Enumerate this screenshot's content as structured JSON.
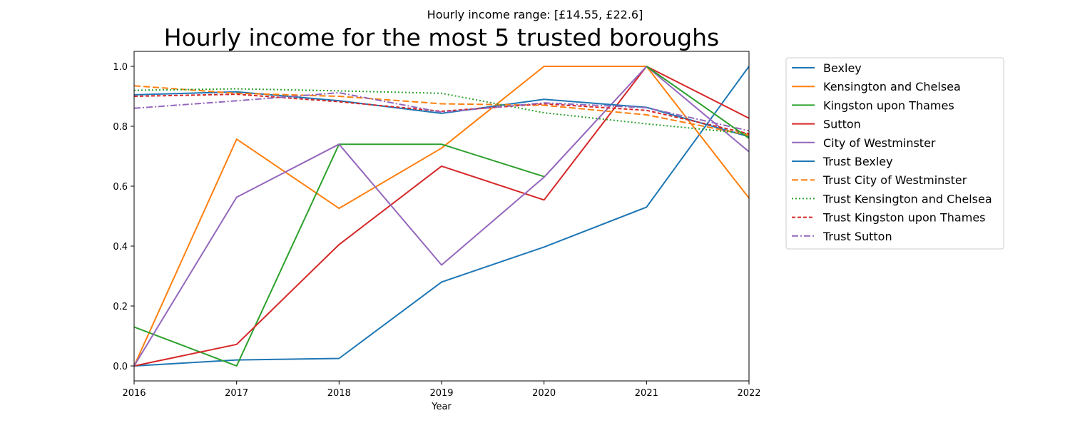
{
  "chart_data": {
    "type": "line",
    "subtitle": "Hourly income range: [£14.55, £22.6]",
    "title": "Hourly income for the most 5 trusted boroughs",
    "xlabel": "Year",
    "ylabel": "",
    "x": [
      2016,
      2017,
      2018,
      2019,
      2020,
      2021,
      2022
    ],
    "x_tick_labels": [
      "2016",
      "2017",
      "2018",
      "2019",
      "2020",
      "2021",
      "2022"
    ],
    "y_ticks": [
      0.0,
      0.2,
      0.4,
      0.6,
      0.8,
      1.0
    ],
    "y_tick_labels": [
      "0.0",
      "0.2",
      "0.4",
      "0.6",
      "0.8",
      "1.0"
    ],
    "xlim": [
      2016,
      2022
    ],
    "ylim": [
      -0.05,
      1.05
    ],
    "grid": false,
    "legend_position": "outside-right",
    "series": [
      {
        "name": "Bexley",
        "color": "#1f77b4",
        "dash": "solid",
        "values": [
          0.0,
          0.02,
          0.025,
          0.28,
          0.397,
          0.53,
          1.0
        ]
      },
      {
        "name": "Kensington and Chelsea",
        "color": "#ff7f0e",
        "dash": "solid",
        "values": [
          0.0,
          0.757,
          0.526,
          0.727,
          1.0,
          1.0,
          0.56
        ]
      },
      {
        "name": "Kingston upon Thames",
        "color": "#2ca02c",
        "dash": "solid",
        "values": [
          0.13,
          0.0,
          0.74,
          0.74,
          0.632,
          null,
          null
        ]
      },
      {
        "name": "Sutton",
        "color": "#d62728",
        "dash": "solid",
        "values": [
          0.0,
          0.072,
          0.405,
          0.667,
          0.554,
          1.0,
          0.827
        ]
      },
      {
        "name": "City of Westminster",
        "color": "#9467bd",
        "dash": "solid",
        "values": [
          0.0,
          0.563,
          0.74,
          0.337,
          0.63,
          1.0,
          0.715
        ]
      },
      {
        "name": "Trust Bexley",
        "color": "#1f77b4",
        "dash": "solid",
        "values": [
          0.905,
          0.915,
          0.885,
          0.843,
          0.89,
          0.863,
          0.765
        ]
      },
      {
        "name": "Trust City of Westminster",
        "color": "#ff7f0e",
        "dash": "dashed",
        "values": [
          0.935,
          0.91,
          0.9,
          0.875,
          0.87,
          0.838,
          0.77
        ]
      },
      {
        "name": "Trust Kensington and Chelsea",
        "color": "#2ca02c",
        "dash": "dotted",
        "values": [
          0.92,
          0.925,
          0.918,
          0.91,
          0.845,
          0.808,
          0.775
        ]
      },
      {
        "name": "Trust Kingston upon Thames",
        "color": "#d62728",
        "dash": "dashed-short",
        "values": [
          0.9,
          0.907,
          0.882,
          0.85,
          0.875,
          0.853,
          0.775
        ]
      },
      {
        "name": "Trust Sutton",
        "color": "#9467bd",
        "dash": "dashdot",
        "values": [
          0.86,
          0.885,
          0.912,
          0.847,
          0.878,
          0.862,
          0.785
        ]
      }
    ],
    "extra_segments": [
      {
        "series": "Kingston upon Thames",
        "color": "#2ca02c",
        "dash": "solid",
        "x": [
          2021,
          2022
        ],
        "values": [
          1.0,
          0.76
        ]
      }
    ]
  }
}
